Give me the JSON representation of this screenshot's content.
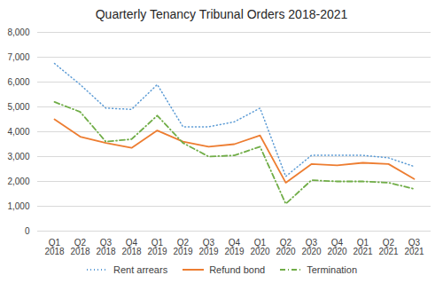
{
  "chart_data": {
    "type": "line",
    "title": "Quarterly Tenancy Tribunal Orders 2018-2021",
    "categories": [
      "Q1\n2018",
      "Q2\n2018",
      "Q3\n2018",
      "Q4\n2018",
      "Q1\n2019",
      "Q2\n2019",
      "Q3\n2019",
      "Q4\n2019",
      "Q1\n2020",
      "Q2\n2020",
      "Q3\n2020",
      "Q4\n2020",
      "Q1\n2021",
      "Q2\n2021",
      "Q3\n2021"
    ],
    "series": [
      {
        "name": "Rent arrears",
        "color": "#5b9bd5",
        "line_style": "dotted",
        "values": [
          6750,
          5900,
          4950,
          4900,
          5900,
          4200,
          4200,
          4400,
          4950,
          2200,
          3050,
          3050,
          3050,
          2950,
          2600
        ]
      },
      {
        "name": "Refund bond",
        "color": "#ed7d31",
        "line_style": "solid",
        "values": [
          4500,
          3800,
          3550,
          3350,
          4050,
          3600,
          3400,
          3500,
          3850,
          1950,
          2700,
          2650,
          2750,
          2700,
          2100
        ]
      },
      {
        "name": "Termination",
        "color": "#70ad47",
        "line_style": "dashdot",
        "values": [
          5200,
          4800,
          3600,
          3700,
          4650,
          3550,
          3000,
          3050,
          3400,
          1100,
          2050,
          2000,
          2000,
          1950,
          1700
        ]
      }
    ],
    "ylim": [
      0,
      8000
    ],
    "yticks": [
      0,
      1000,
      2000,
      3000,
      4000,
      5000,
      6000,
      7000,
      8000
    ],
    "grid": true,
    "legend": "bottom"
  }
}
